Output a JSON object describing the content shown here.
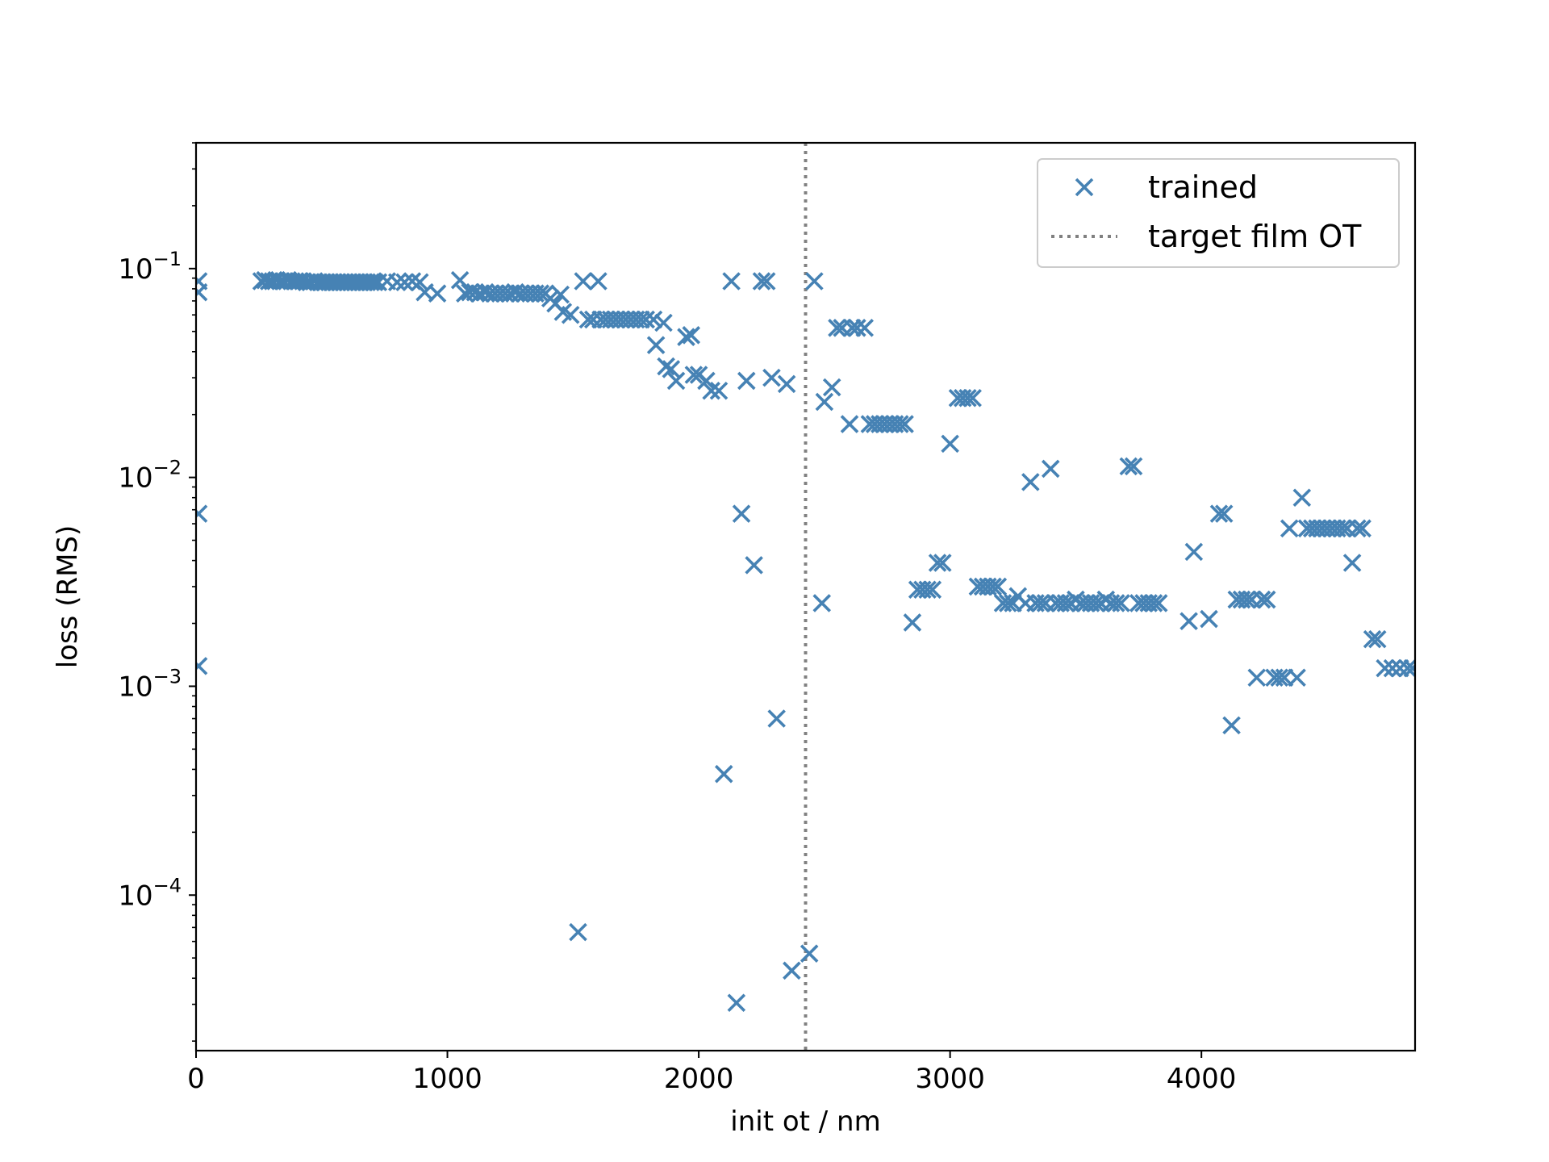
{
  "chart_data": {
    "type": "scatter",
    "title": "",
    "xlabel": "init ot / nm",
    "ylabel": "loss (RMS)",
    "xlim": [
      0,
      4850
    ],
    "ylim": [
      1.8e-05,
      0.4
    ],
    "yscale": "log",
    "grid": false,
    "legend_position": "top-right",
    "x_ticks": [
      {
        "value": 0,
        "label": "0"
      },
      {
        "value": 1000,
        "label": "1000"
      },
      {
        "value": 2000,
        "label": "2000"
      },
      {
        "value": 3000,
        "label": "3000"
      },
      {
        "value": 4000,
        "label": "4000"
      }
    ],
    "y_ticks": [
      {
        "value": 0.0001,
        "base": "10",
        "exp": "−4"
      },
      {
        "value": 0.001,
        "base": "10",
        "exp": "−3"
      },
      {
        "value": 0.01,
        "base": "10",
        "exp": "−2"
      },
      {
        "value": 0.1,
        "base": "10",
        "exp": "−1"
      }
    ],
    "reference_line": {
      "name": "target film OT",
      "x": 2425,
      "color": "#808080",
      "style": "dotted"
    },
    "series": [
      {
        "name": "trained",
        "marker": "x",
        "color": "#4682b4",
        "points": [
          [
            10,
            0.087
          ],
          [
            10,
            0.077
          ],
          [
            10,
            0.0067
          ],
          [
            10,
            0.00125
          ],
          [
            260,
            0.087
          ],
          [
            275,
            0.088
          ],
          [
            290,
            0.087
          ],
          [
            305,
            0.087
          ],
          [
            320,
            0.088
          ],
          [
            335,
            0.087
          ],
          [
            350,
            0.087
          ],
          [
            365,
            0.088
          ],
          [
            380,
            0.087
          ],
          [
            395,
            0.087
          ],
          [
            410,
            0.087
          ],
          [
            425,
            0.087
          ],
          [
            440,
            0.086
          ],
          [
            455,
            0.086
          ],
          [
            470,
            0.087
          ],
          [
            485,
            0.086
          ],
          [
            500,
            0.086
          ],
          [
            515,
            0.086
          ],
          [
            530,
            0.086
          ],
          [
            545,
            0.086
          ],
          [
            560,
            0.086
          ],
          [
            575,
            0.086
          ],
          [
            590,
            0.086
          ],
          [
            605,
            0.086
          ],
          [
            620,
            0.086
          ],
          [
            635,
            0.086
          ],
          [
            650,
            0.086
          ],
          [
            665,
            0.086
          ],
          [
            680,
            0.086
          ],
          [
            695,
            0.086
          ],
          [
            710,
            0.086
          ],
          [
            725,
            0.086
          ],
          [
            760,
            0.087
          ],
          [
            800,
            0.086
          ],
          [
            830,
            0.086
          ],
          [
            860,
            0.087
          ],
          [
            890,
            0.086
          ],
          [
            910,
            0.077
          ],
          [
            960,
            0.076
          ],
          [
            1050,
            0.088
          ],
          [
            1070,
            0.076
          ],
          [
            1090,
            0.077
          ],
          [
            1110,
            0.077
          ],
          [
            1130,
            0.076
          ],
          [
            1150,
            0.077
          ],
          [
            1170,
            0.076
          ],
          [
            1190,
            0.076
          ],
          [
            1210,
            0.076
          ],
          [
            1230,
            0.076
          ],
          [
            1250,
            0.076
          ],
          [
            1270,
            0.077
          ],
          [
            1290,
            0.076
          ],
          [
            1310,
            0.076
          ],
          [
            1330,
            0.076
          ],
          [
            1350,
            0.076
          ],
          [
            1370,
            0.076
          ],
          [
            1390,
            0.076
          ],
          [
            1410,
            0.072
          ],
          [
            1430,
            0.068
          ],
          [
            1450,
            0.075
          ],
          [
            1460,
            0.062
          ],
          [
            1490,
            0.06
          ],
          [
            1520,
            6.65e-05
          ],
          [
            1540,
            0.087
          ],
          [
            1560,
            0.057
          ],
          [
            1580,
            0.057
          ],
          [
            1600,
            0.087
          ],
          [
            1610,
            0.057
          ],
          [
            1630,
            0.057
          ],
          [
            1650,
            0.057
          ],
          [
            1670,
            0.057
          ],
          [
            1690,
            0.057
          ],
          [
            1710,
            0.057
          ],
          [
            1730,
            0.057
          ],
          [
            1750,
            0.057
          ],
          [
            1770,
            0.057
          ],
          [
            1790,
            0.057
          ],
          [
            1820,
            0.057
          ],
          [
            1830,
            0.043
          ],
          [
            1860,
            0.055
          ],
          [
            1870,
            0.034
          ],
          [
            1890,
            0.033
          ],
          [
            1910,
            0.029
          ],
          [
            1950,
            0.047
          ],
          [
            1970,
            0.048
          ],
          [
            1980,
            0.031
          ],
          [
            2000,
            0.031
          ],
          [
            2030,
            0.029
          ],
          [
            2050,
            0.026
          ],
          [
            2080,
            0.026
          ],
          [
            2100,
            0.00038
          ],
          [
            2130,
            0.087
          ],
          [
            2150,
            3.05e-05
          ],
          [
            2170,
            0.0067
          ],
          [
            2190,
            0.029
          ],
          [
            2220,
            0.0038
          ],
          [
            2250,
            0.087
          ],
          [
            2270,
            0.087
          ],
          [
            2290,
            0.03
          ],
          [
            2310,
            0.0007
          ],
          [
            2350,
            0.028
          ],
          [
            2370,
            4.35e-05
          ],
          [
            2440,
            5.25e-05
          ],
          [
            2460,
            0.087
          ],
          [
            2490,
            0.0025
          ],
          [
            2500,
            0.023
          ],
          [
            2530,
            0.027
          ],
          [
            2550,
            0.052
          ],
          [
            2570,
            0.052
          ],
          [
            2600,
            0.018
          ],
          [
            2610,
            0.052
          ],
          [
            2630,
            0.052
          ],
          [
            2660,
            0.052
          ],
          [
            2680,
            0.018
          ],
          [
            2700,
            0.018
          ],
          [
            2720,
            0.018
          ],
          [
            2740,
            0.018
          ],
          [
            2760,
            0.018
          ],
          [
            2780,
            0.018
          ],
          [
            2800,
            0.018
          ],
          [
            2820,
            0.018
          ],
          [
            2850,
            0.00202
          ],
          [
            2870,
            0.0029
          ],
          [
            2890,
            0.0029
          ],
          [
            2910,
            0.0029
          ],
          [
            2930,
            0.0029
          ],
          [
            2950,
            0.0039
          ],
          [
            2970,
            0.0039
          ],
          [
            3000,
            0.0145
          ],
          [
            3030,
            0.024
          ],
          [
            3050,
            0.024
          ],
          [
            3070,
            0.024
          ],
          [
            3090,
            0.024
          ],
          [
            3110,
            0.003
          ],
          [
            3130,
            0.003
          ],
          [
            3150,
            0.003
          ],
          [
            3170,
            0.003
          ],
          [
            3190,
            0.003
          ],
          [
            3210,
            0.0025
          ],
          [
            3230,
            0.0025
          ],
          [
            3250,
            0.0025
          ],
          [
            3270,
            0.0027
          ],
          [
            3300,
            0.0025
          ],
          [
            3320,
            0.0095
          ],
          [
            3340,
            0.0025
          ],
          [
            3360,
            0.0025
          ],
          [
            3380,
            0.0025
          ],
          [
            3400,
            0.011
          ],
          [
            3420,
            0.0025
          ],
          [
            3440,
            0.0025
          ],
          [
            3460,
            0.0025
          ],
          [
            3480,
            0.0025
          ],
          [
            3500,
            0.0026
          ],
          [
            3520,
            0.0025
          ],
          [
            3540,
            0.0025
          ],
          [
            3560,
            0.0025
          ],
          [
            3580,
            0.0025
          ],
          [
            3600,
            0.0025
          ],
          [
            3620,
            0.0026
          ],
          [
            3640,
            0.0025
          ],
          [
            3660,
            0.0025
          ],
          [
            3680,
            0.0025
          ],
          [
            3710,
            0.0113
          ],
          [
            3730,
            0.0113
          ],
          [
            3750,
            0.0025
          ],
          [
            3770,
            0.0025
          ],
          [
            3790,
            0.0025
          ],
          [
            3810,
            0.0025
          ],
          [
            3830,
            0.0025
          ],
          [
            3950,
            0.00205
          ],
          [
            3970,
            0.0044
          ],
          [
            4030,
            0.0021
          ],
          [
            4070,
            0.0067
          ],
          [
            4090,
            0.0067
          ],
          [
            4120,
            0.00065
          ],
          [
            4140,
            0.0026
          ],
          [
            4160,
            0.0026
          ],
          [
            4180,
            0.0026
          ],
          [
            4200,
            0.0026
          ],
          [
            4220,
            0.0011
          ],
          [
            4240,
            0.0026
          ],
          [
            4260,
            0.0026
          ],
          [
            4290,
            0.0011
          ],
          [
            4310,
            0.0011
          ],
          [
            4330,
            0.0011
          ],
          [
            4350,
            0.0057
          ],
          [
            4380,
            0.0011
          ],
          [
            4400,
            0.008
          ],
          [
            4420,
            0.0057
          ],
          [
            4440,
            0.0057
          ],
          [
            4460,
            0.0057
          ],
          [
            4480,
            0.0057
          ],
          [
            4500,
            0.0057
          ],
          [
            4520,
            0.0057
          ],
          [
            4540,
            0.0057
          ],
          [
            4560,
            0.0057
          ],
          [
            4580,
            0.0057
          ],
          [
            4600,
            0.0039
          ],
          [
            4620,
            0.0057
          ],
          [
            4640,
            0.0057
          ],
          [
            4680,
            0.00168
          ],
          [
            4700,
            0.00168
          ],
          [
            4730,
            0.00122
          ],
          [
            4760,
            0.00122
          ],
          [
            4790,
            0.00122
          ],
          [
            4820,
            0.00122
          ],
          [
            4840,
            0.00122
          ]
        ]
      }
    ]
  }
}
